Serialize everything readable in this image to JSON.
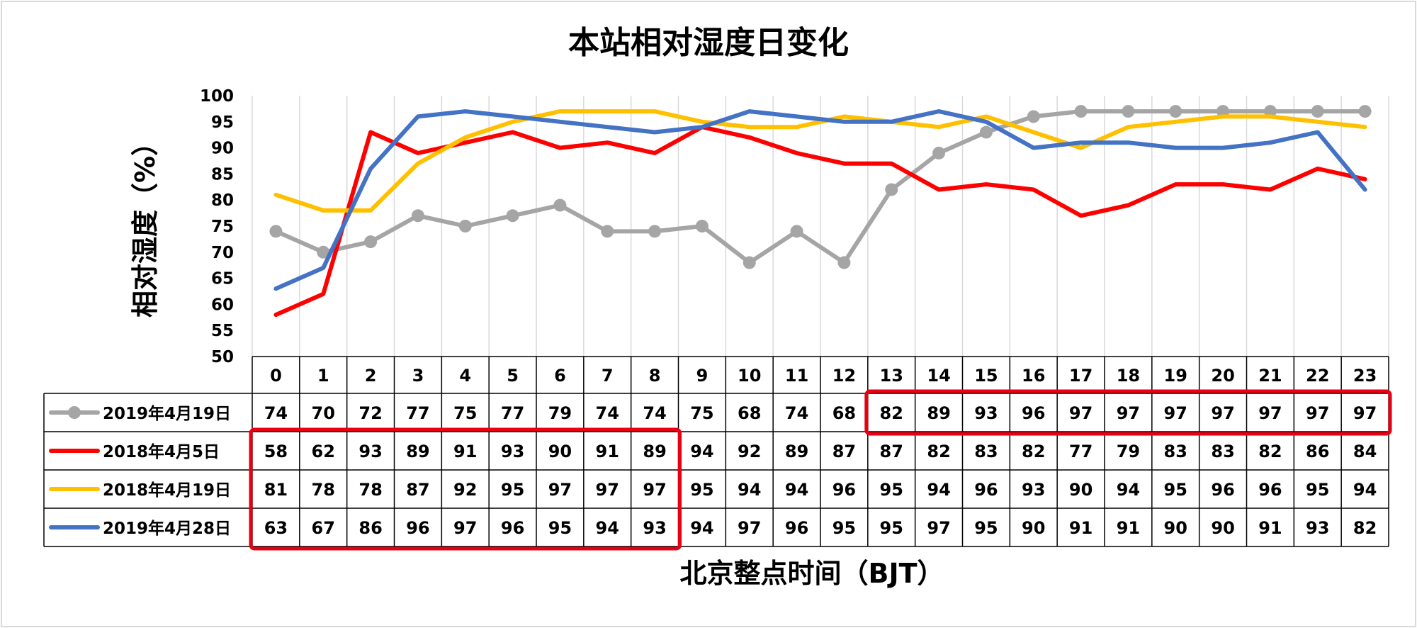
{
  "chart_data": {
    "type": "line",
    "title": "本站相对湿度日变化",
    "xlabel": "北京整点时间（BJT）",
    "ylabel": "相对湿度（%）",
    "ylim": [
      50,
      100
    ],
    "yticks": [
      50,
      55,
      60,
      65,
      70,
      75,
      80,
      85,
      90,
      95,
      100
    ],
    "categories": [
      "0",
      "1",
      "2",
      "3",
      "4",
      "5",
      "6",
      "7",
      "8",
      "9",
      "10",
      "11",
      "12",
      "13",
      "14",
      "15",
      "16",
      "17",
      "18",
      "19",
      "20",
      "21",
      "22",
      "23"
    ],
    "grid": "vertical",
    "legend": "data-table-left",
    "series": [
      {
        "name": "2019年4月19日",
        "color": "#a5a5a5",
        "marker": "circle",
        "values": [
          74,
          70,
          72,
          77,
          75,
          77,
          79,
          74,
          74,
          75,
          68,
          74,
          68,
          82,
          89,
          93,
          96,
          97,
          97,
          97,
          97,
          97,
          97,
          97
        ]
      },
      {
        "name": "2018年4月5日",
        "color": "#ff0000",
        "marker": "none",
        "values": [
          58,
          62,
          93,
          89,
          91,
          93,
          90,
          91,
          89,
          94,
          92,
          89,
          87,
          87,
          82,
          83,
          82,
          77,
          79,
          83,
          83,
          82,
          86,
          84
        ]
      },
      {
        "name": "2018年4月19日",
        "color": "#ffc000",
        "marker": "none",
        "values": [
          81,
          78,
          78,
          87,
          92,
          95,
          97,
          97,
          97,
          95,
          94,
          94,
          96,
          95,
          94,
          96,
          93,
          90,
          94,
          95,
          96,
          96,
          95,
          94
        ]
      },
      {
        "name": "2019年4月28日",
        "color": "#4472c4",
        "marker": "none",
        "values": [
          63,
          67,
          86,
          96,
          97,
          96,
          95,
          94,
          93,
          94,
          97,
          96,
          95,
          95,
          97,
          95,
          90,
          91,
          91,
          90,
          90,
          91,
          93,
          82
        ]
      }
    ],
    "highlights": [
      {
        "series": 0,
        "from": 13,
        "to": 23,
        "color": "#e60012"
      },
      {
        "series_from": 1,
        "series_to": 3,
        "from": 0,
        "to": 8,
        "color": "#e60012"
      }
    ]
  }
}
